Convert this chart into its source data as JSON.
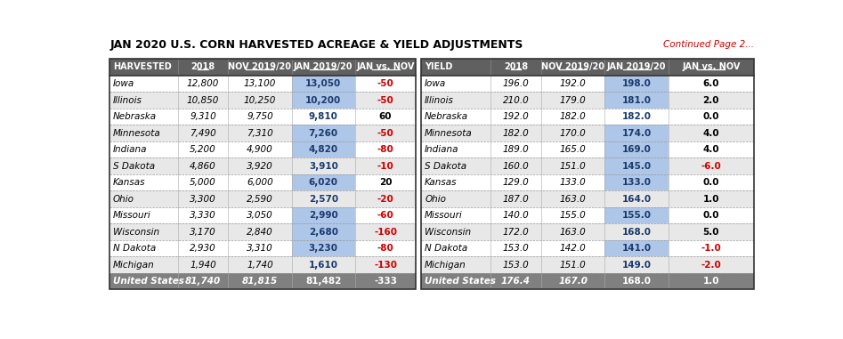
{
  "title": "JAN 2020 U.S. CORN HARVESTED ACREAGE & YIELD ADJUSTMENTS",
  "continued": "Continued Page 2...",
  "harvest_headers": [
    "HARVESTED",
    "2018",
    "NOV 2019/20",
    "JAN 2019/20",
    "JAN vs. NOV"
  ],
  "yield_headers": [
    "YIELD",
    "2018",
    "NOV 2019/20",
    "JAN 2019/20",
    "JAN vs. NOV"
  ],
  "harvest_rows": [
    [
      "Iowa",
      "12,800",
      "13,100",
      "13,050",
      "-50"
    ],
    [
      "Illinois",
      "10,850",
      "10,250",
      "10,200",
      "-50"
    ],
    [
      "Nebraska",
      "9,310",
      "9,750",
      "9,810",
      "60"
    ],
    [
      "Minnesota",
      "7,490",
      "7,310",
      "7,260",
      "-50"
    ],
    [
      "Indiana",
      "5,200",
      "4,900",
      "4,820",
      "-80"
    ],
    [
      "S Dakota",
      "4,860",
      "3,920",
      "3,910",
      "-10"
    ],
    [
      "Kansas",
      "5,000",
      "6,000",
      "6,020",
      "20"
    ],
    [
      "Ohio",
      "3,300",
      "2,590",
      "2,570",
      "-20"
    ],
    [
      "Missouri",
      "3,330",
      "3,050",
      "2,990",
      "-60"
    ],
    [
      "Wisconsin",
      "3,170",
      "2,840",
      "2,680",
      "-160"
    ],
    [
      "N Dakota",
      "2,930",
      "3,310",
      "3,230",
      "-80"
    ],
    [
      "Michigan",
      "1,940",
      "1,740",
      "1,610",
      "-130"
    ]
  ],
  "harvest_total": [
    "United States",
    "81,740",
    "81,815",
    "81,482",
    "-333"
  ],
  "yield_rows": [
    [
      "Iowa",
      "196.0",
      "192.0",
      "198.0",
      "6.0"
    ],
    [
      "Illinois",
      "210.0",
      "179.0",
      "181.0",
      "2.0"
    ],
    [
      "Nebraska",
      "192.0",
      "182.0",
      "182.0",
      "0.0"
    ],
    [
      "Minnesota",
      "182.0",
      "170.0",
      "174.0",
      "4.0"
    ],
    [
      "Indiana",
      "189.0",
      "165.0",
      "169.0",
      "4.0"
    ],
    [
      "S Dakota",
      "160.0",
      "151.0",
      "145.0",
      "-6.0"
    ],
    [
      "Kansas",
      "129.0",
      "133.0",
      "133.0",
      "0.0"
    ],
    [
      "Ohio",
      "187.0",
      "163.0",
      "164.0",
      "1.0"
    ],
    [
      "Missouri",
      "140.0",
      "155.0",
      "155.0",
      "0.0"
    ],
    [
      "Wisconsin",
      "172.0",
      "163.0",
      "168.0",
      "5.0"
    ],
    [
      "N Dakota",
      "153.0",
      "142.0",
      "141.0",
      "-1.0"
    ],
    [
      "Michigan",
      "153.0",
      "151.0",
      "149.0",
      "-2.0"
    ]
  ],
  "yield_total": [
    "United States",
    "176.4",
    "167.0",
    "168.0",
    "1.0"
  ],
  "header_bg": "#606060",
  "header_text": "#ffffff",
  "row_bg_white": "#ffffff",
  "row_bg_gray": "#e8e8e8",
  "total_bg": "#808080",
  "total_text": "#ffffff",
  "blue_highlight_bg": "#aec6e8",
  "blue_col_text": "#1a3a6b",
  "red_text": "#cc0000",
  "black_text": "#000000",
  "harvest_blue_rows": [
    0,
    1,
    3,
    4,
    6,
    8,
    9,
    10
  ],
  "yield_blue_rows": [
    0,
    1,
    3,
    4,
    5,
    6,
    8,
    10
  ]
}
